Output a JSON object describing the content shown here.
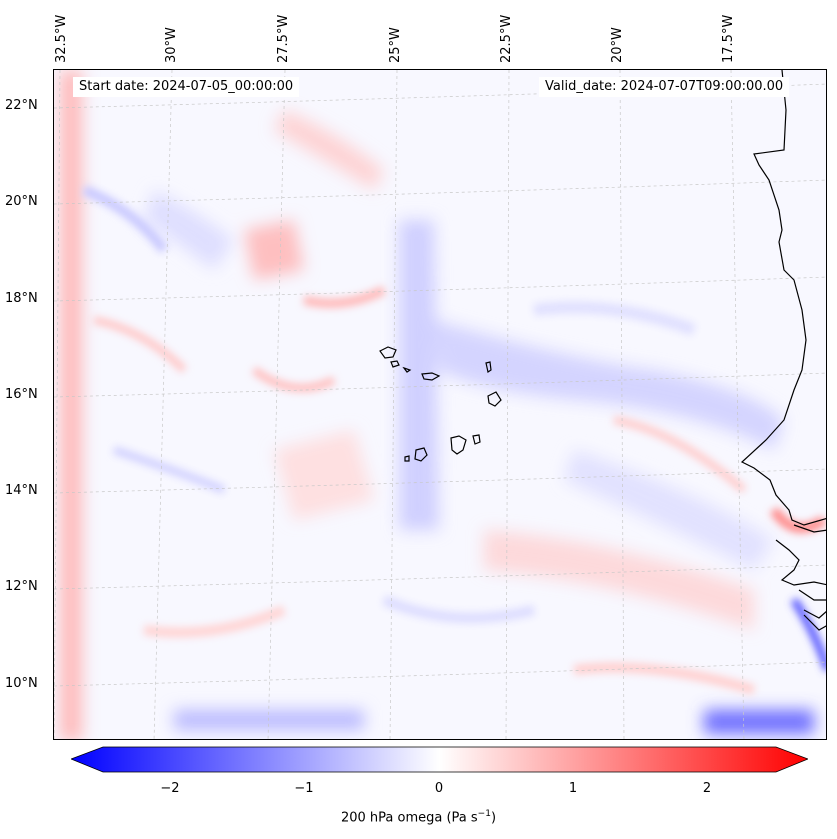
{
  "header": {
    "start_date": "Start date: 2024-07-05_00:00:00",
    "valid_date": "Valid_date: 2024-07-07T09:00:00.00"
  },
  "axes": {
    "lon_labels": [
      "32.5°W",
      "30°W",
      "27.5°W",
      "25°W",
      "22.5°W",
      "20°W",
      "17.5°W"
    ],
    "lat_labels": [
      "22°N",
      "20°N",
      "18°N",
      "16°N",
      "14°N",
      "12°N",
      "10°N"
    ]
  },
  "colorbar": {
    "ticks": [
      "−2",
      "−1",
      "0",
      "1",
      "2"
    ],
    "range": [
      -2.75,
      2.75
    ],
    "label_prefix": "200 hPa omega (Pa s",
    "label_exp": "−1",
    "label_suffix": ")",
    "colors": {
      "low": "#0000ff",
      "mid": "#ffffff",
      "high": "#ff0000"
    }
  },
  "map": {
    "field": "200 hPa omega",
    "region": "Eastern Atlantic / Cape Verde / West African coast",
    "colors": {
      "coast": "#000000",
      "grid": "#c8c8c8"
    }
  }
}
